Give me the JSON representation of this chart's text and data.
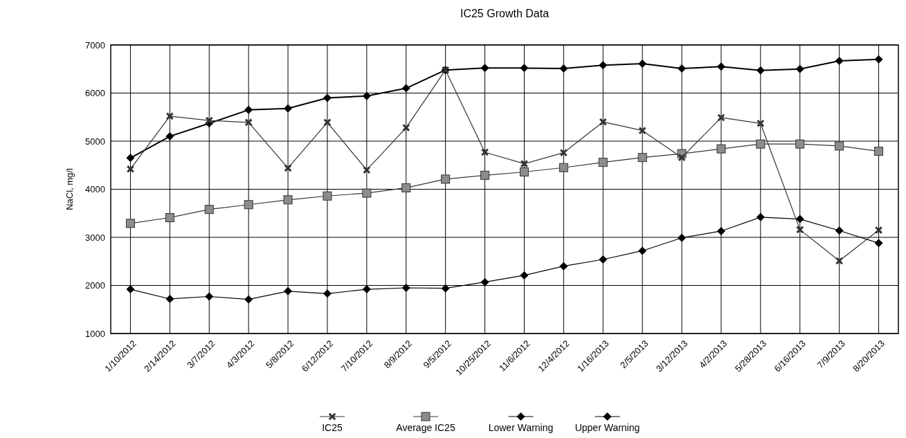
{
  "chart_data": {
    "type": "line",
    "title": "IC25 Growth Data",
    "ylabel": "NaCl, mg/l",
    "categories": [
      "1/10/2012",
      "2/14/2012",
      "3/7/2012",
      "4/3/2012",
      "5/8/2012",
      "6/12/2012",
      "7/10/2012",
      "8/9/2012",
      "9/5/2012",
      "10/25/2012",
      "11/6/2012",
      "12/4/2012",
      "1/16/2013",
      "2/5/2013",
      "3/12/2013",
      "4/2/2013",
      "5/28/2013",
      "6/16/2013",
      "7/9/2013",
      "8/20/2013"
    ],
    "series": [
      {
        "name": "IC25",
        "color": "#333333",
        "marker": "cross",
        "values": [
          4420,
          5520,
          5430,
          5390,
          4440,
          5390,
          4400,
          5280,
          6480,
          4770,
          4530,
          4760,
          5400,
          5220,
          4660,
          5490,
          5370,
          3160,
          2510,
          3150
        ]
      },
      {
        "name": "Average IC25",
        "color": "#8c8c8c",
        "marker": "square",
        "values": [
          3290,
          3410,
          3580,
          3680,
          3780,
          3860,
          3920,
          4030,
          4210,
          4290,
          4360,
          4450,
          4560,
          4660,
          4740,
          4840,
          4940,
          4940,
          4900,
          4790
        ]
      },
      {
        "name": "Lower Warning",
        "color": "#000000",
        "marker": "diamond",
        "values": [
          1920,
          1720,
          1770,
          1710,
          1880,
          1830,
          1920,
          1950,
          1940,
          2070,
          2210,
          2400,
          2540,
          2720,
          2990,
          3130,
          3420,
          3380,
          3140,
          2880
        ]
      },
      {
        "name": "Upper Warning",
        "color": "#000000",
        "marker": "diamond",
        "values": [
          4650,
          5100,
          5370,
          5650,
          5680,
          5900,
          5940,
          6100,
          6480,
          6520,
          6520,
          6510,
          6580,
          6610,
          6510,
          6550,
          6470,
          6500,
          6670,
          6700
        ]
      }
    ],
    "ylim": [
      1000,
      7000
    ],
    "yticks": [
      1000,
      2000,
      3000,
      4000,
      5000,
      6000,
      7000
    ],
    "grid": true,
    "legend": "bottom"
  }
}
